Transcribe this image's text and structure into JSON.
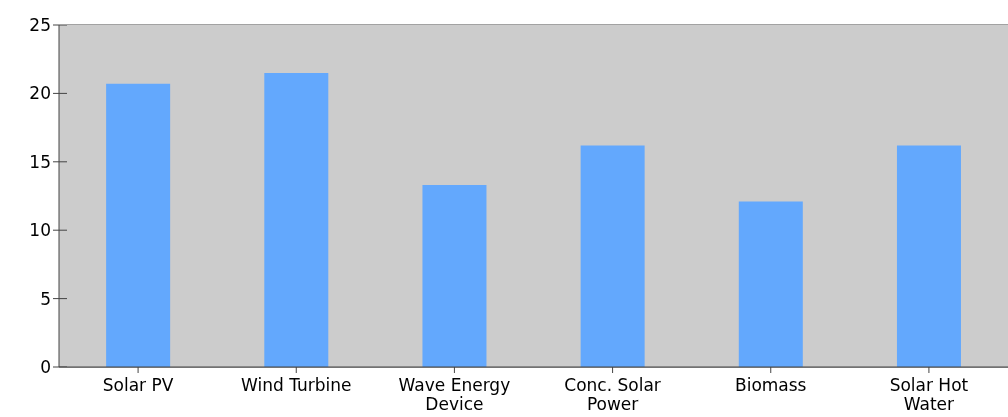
{
  "chart_data": {
    "type": "bar",
    "categories": [
      "Solar PV",
      "Wind Turbine",
      "Wave Energy Device",
      "Conc. Solar Power",
      "Biomass",
      "Solar Hot Water"
    ],
    "values": [
      20.7,
      21.5,
      13.3,
      16.2,
      12.1,
      16.2
    ],
    "color": "#63a8fd",
    "ylim": [
      0,
      25
    ],
    "yticks": [
      0,
      5,
      10,
      15,
      20,
      25
    ],
    "grid": "y"
  }
}
